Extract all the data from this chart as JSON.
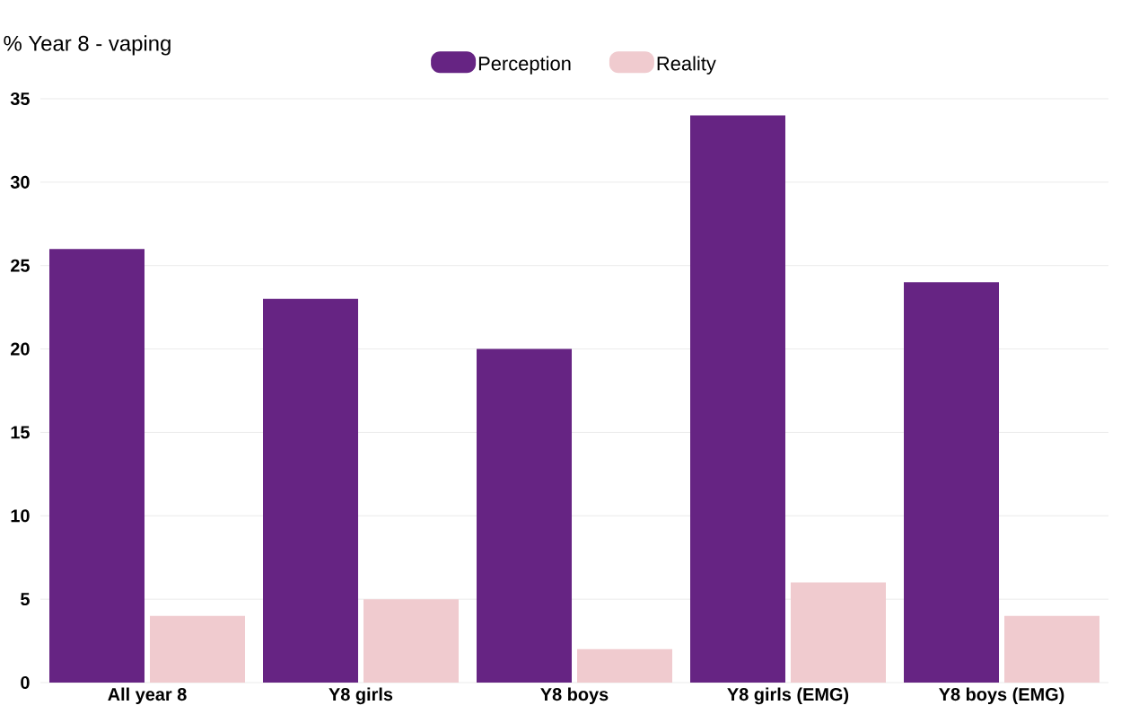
{
  "chart_data": {
    "type": "bar",
    "title": "% Year 8 - vaping",
    "categories": [
      "All year 8",
      "Y8 girls",
      "Y8 boys",
      "Y8 girls (EMG)",
      "Y8 boys (EMG)"
    ],
    "series": [
      {
        "name": "Perception",
        "color": "#662483",
        "values": [
          26,
          23,
          20,
          34,
          24
        ]
      },
      {
        "name": "Reality",
        "color": "#f0cbcf",
        "values": [
          4,
          5,
          2,
          6,
          4
        ]
      }
    ],
    "ylim": [
      0,
      35
    ],
    "yticks": [
      0,
      5,
      10,
      15,
      20,
      25,
      30,
      35
    ],
    "grid": "y",
    "legend": "top"
  }
}
